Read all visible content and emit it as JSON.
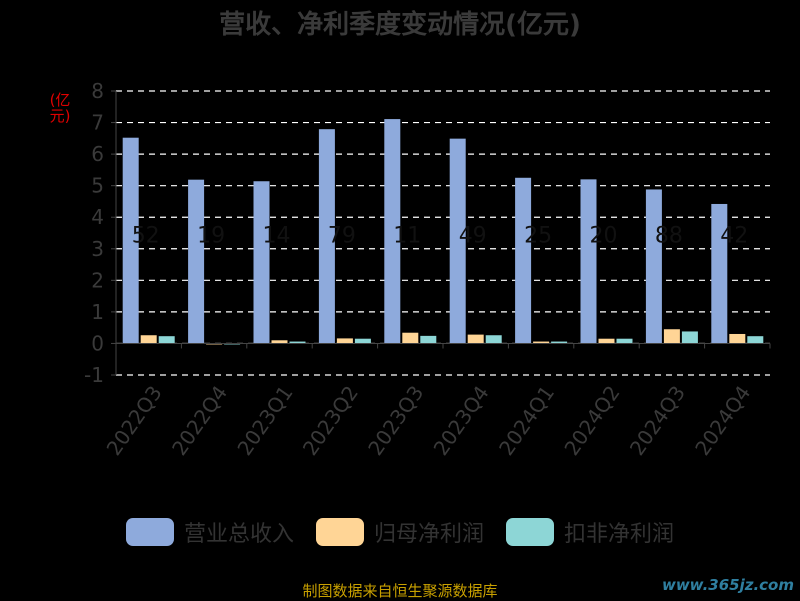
{
  "chart_data": {
    "type": "bar",
    "title": "营收、净利季度变动情况(亿元)",
    "ylabel": "(亿元)",
    "categories": [
      "2022Q3",
      "2022Q4",
      "2023Q1",
      "2023Q2",
      "2023Q3",
      "2023Q4",
      "2024Q1",
      "2024Q2",
      "2024Q3",
      "2024Q4"
    ],
    "ylim": [
      -1,
      8
    ],
    "yticks": [
      "-1",
      "0",
      "1",
      "2",
      "3",
      "4",
      "5",
      "6",
      "7",
      "8"
    ],
    "grid": true,
    "legend_position": "bottom",
    "series": [
      {
        "name": "营业总收入",
        "color": "#8eaadc",
        "values": [
          6.52,
          5.19,
          5.14,
          6.79,
          7.11,
          6.49,
          5.25,
          5.2,
          4.88,
          4.42
        ]
      },
      {
        "name": "归母净利润",
        "color": "#ffd596",
        "values": [
          0.26,
          -0.03,
          0.1,
          0.16,
          0.34,
          0.28,
          0.06,
          0.15,
          0.45,
          0.3
        ]
      },
      {
        "name": "扣非净利润",
        "color": "#8dd6d6",
        "values": [
          0.23,
          -0.02,
          0.06,
          0.15,
          0.24,
          0.26,
          0.06,
          0.15,
          0.38,
          0.23
        ]
      }
    ],
    "data_labels": [
      "52",
      "19",
      "14",
      "79",
      "11",
      "49",
      "25",
      "20",
      "88",
      "42"
    ]
  },
  "footer": {
    "source": "制图数据来自恒生聚源数据库",
    "watermark": "www.365jz.com"
  }
}
